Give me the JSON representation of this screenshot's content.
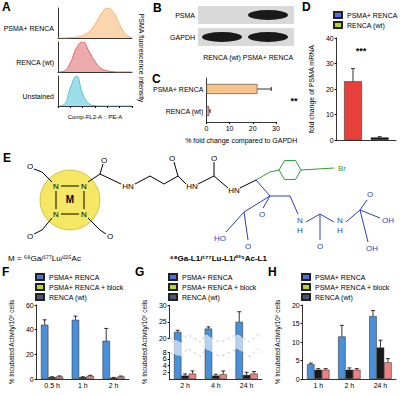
{
  "chart_data": [
    {
      "panel": "A",
      "type": "line",
      "x": [
        0,
        1,
        2,
        3,
        4,
        5,
        6,
        7,
        8,
        9,
        10,
        11,
        12
      ],
      "xlim": [
        0,
        12
      ],
      "ylim": [
        0,
        100
      ],
      "tick_labels": false,
      "xlabel": "Comp-FL2-A :: PE-A",
      "ylabel": "PSMA fluorescence intensity",
      "series": [
        {
          "name": "PSMA+ RENCA",
          "color": "#f6b26b",
          "values": [
            0,
            0,
            1,
            3,
            8,
            20,
            45,
            80,
            100,
            85,
            45,
            12,
            2
          ]
        },
        {
          "name": "RENCA (wt)",
          "color": "#e06666",
          "values": [
            0,
            3,
            30,
            80,
            100,
            70,
            35,
            12,
            4,
            1,
            0,
            0,
            0
          ]
        },
        {
          "name": "Unstained",
          "color": "#4fc3dc",
          "values": [
            0,
            5,
            60,
            100,
            40,
            8,
            1,
            0,
            0,
            0,
            0,
            0,
            0
          ]
        }
      ]
    },
    {
      "panel": "C",
      "type": "bar",
      "orientation": "horizontal",
      "categories": [
        "PSMA+ RENCA",
        "RENCA (wt)"
      ],
      "values": [
        22,
        1.2
      ],
      "errors": [
        6,
        0.4
      ],
      "colors": [
        "#f6c48a",
        "#f4a0a0"
      ],
      "xlim": [
        0,
        30
      ],
      "xticks": [
        0,
        10,
        20,
        30
      ],
      "xlabel": "% fold change compared to GAPDH",
      "annotations": [
        "**"
      ]
    },
    {
      "panel": "D",
      "type": "bar",
      "categories": [
        null
      ],
      "legend": "top",
      "series": [
        {
          "name": "PSMA+ RENCA",
          "color": "#e8413c",
          "values": [
            23
          ],
          "errors": [
            5
          ]
        },
        {
          "name": "RENCA (wt)",
          "color": "#1a1a1a",
          "values": [
            1
          ],
          "errors": [
            0.3
          ]
        }
      ],
      "ylim": [
        0,
        40
      ],
      "yticks": [
        0,
        10,
        20,
        30,
        40
      ],
      "ylabel": "fold change of PSMA mRNA",
      "annotations": [
        "***"
      ]
    },
    {
      "panel": "F",
      "type": "bar",
      "categories": [
        "0.5 h",
        "1 h",
        "2 h"
      ],
      "legend": "top",
      "series": [
        {
          "name": "PSMA+ RENCA",
          "color": "#4a90d9",
          "values": [
            44,
            48,
            31
          ],
          "errors": [
            4,
            3,
            10
          ]
        },
        {
          "name": "PSMA+ RENCA + block",
          "color": "#1a1a1a",
          "values": [
            1.5,
            1.5,
            1
          ],
          "errors": [
            0.3,
            0.3,
            0.3
          ]
        },
        {
          "name": "RENCA (wt)",
          "color": "#f08080",
          "values": [
            2,
            2.5,
            2
          ],
          "errors": [
            0.5,
            0.5,
            0.4
          ]
        }
      ],
      "ylim": [
        0,
        60
      ],
      "yticks": [
        0,
        20,
        40,
        60
      ],
      "ylabel": "% Incubated Activity/10⁶ cells"
    },
    {
      "panel": "G",
      "type": "bar",
      "categories": [
        "2 h",
        "4 h",
        "24 h"
      ],
      "legend": "top",
      "series": [
        {
          "name": "PSMA+ RENCA",
          "color": "#4a90d9",
          "values": [
            22,
            23,
            25
          ],
          "errors": [
            0.5,
            0.5,
            3
          ]
        },
        {
          "name": "PSMA+ RENCA + block",
          "color": "#1a1a1a",
          "values": [
            1,
            1,
            1.2
          ],
          "errors": [
            0.5,
            0.4,
            0.8
          ]
        },
        {
          "name": "RENCA (wt)",
          "color": "#f08080",
          "values": [
            1.6,
            1.4,
            1.6
          ],
          "errors": [
            0.8,
            1,
            0.6
          ]
        }
      ],
      "ylim": [
        0,
        30
      ],
      "yticks": [
        0,
        2,
        4,
        6,
        8,
        20,
        25,
        30
      ],
      "ybreak": [
        8,
        20
      ],
      "ylabel": "% Incubated Activity/10⁶ cells"
    },
    {
      "panel": "H",
      "type": "bar",
      "categories": [
        "1 h",
        "2 h",
        "24 h"
      ],
      "legend": "top",
      "series": [
        {
          "name": "PSMA+ RENCA",
          "color": "#4a90d9",
          "values": [
            4,
            11.5,
            17
          ],
          "errors": [
            0.3,
            3,
            1.5
          ]
        },
        {
          "name": "PSMA+ RENCA + block",
          "color": "#1a1a1a",
          "values": [
            2.5,
            2.5,
            8.5
          ],
          "errors": [
            0.3,
            0.5,
            2
          ]
        },
        {
          "name": "RENCA (wt)",
          "color": "#f08080",
          "values": [
            2.5,
            2.5,
            4.5
          ],
          "errors": [
            0.3,
            0.3,
            1
          ]
        }
      ],
      "ylim": [
        0,
        20
      ],
      "yticks": [
        0,
        5,
        10,
        15,
        20
      ],
      "ylabel": "% Incubated Activity/10⁶ cells"
    }
  ],
  "blot": {
    "panel": "B",
    "rows": [
      "PSMA",
      "GAPDH"
    ],
    "lanes": [
      "RENCA (wt)",
      "PSMA+ RENCA"
    ],
    "bands": [
      [
        false,
        true
      ],
      [
        true,
        true
      ]
    ]
  },
  "structure": {
    "panel": "E",
    "atoms": [
      "M",
      "N",
      "N",
      "N",
      "N",
      "O",
      "O",
      "O",
      "O",
      "HN",
      "O",
      "HN",
      "O",
      "HN",
      "Br",
      "O",
      "HO",
      "O",
      "N",
      "H",
      "O",
      "N",
      "H",
      "O",
      "OH",
      "OH"
    ],
    "metal_label": "M = ⁶⁸Ga/¹⁷⁷Lu/²²⁵Ac",
    "name": "⁶⁸Ga-L1/¹⁷⁷Lu-L1/²²⁵Ac-L1"
  }
}
